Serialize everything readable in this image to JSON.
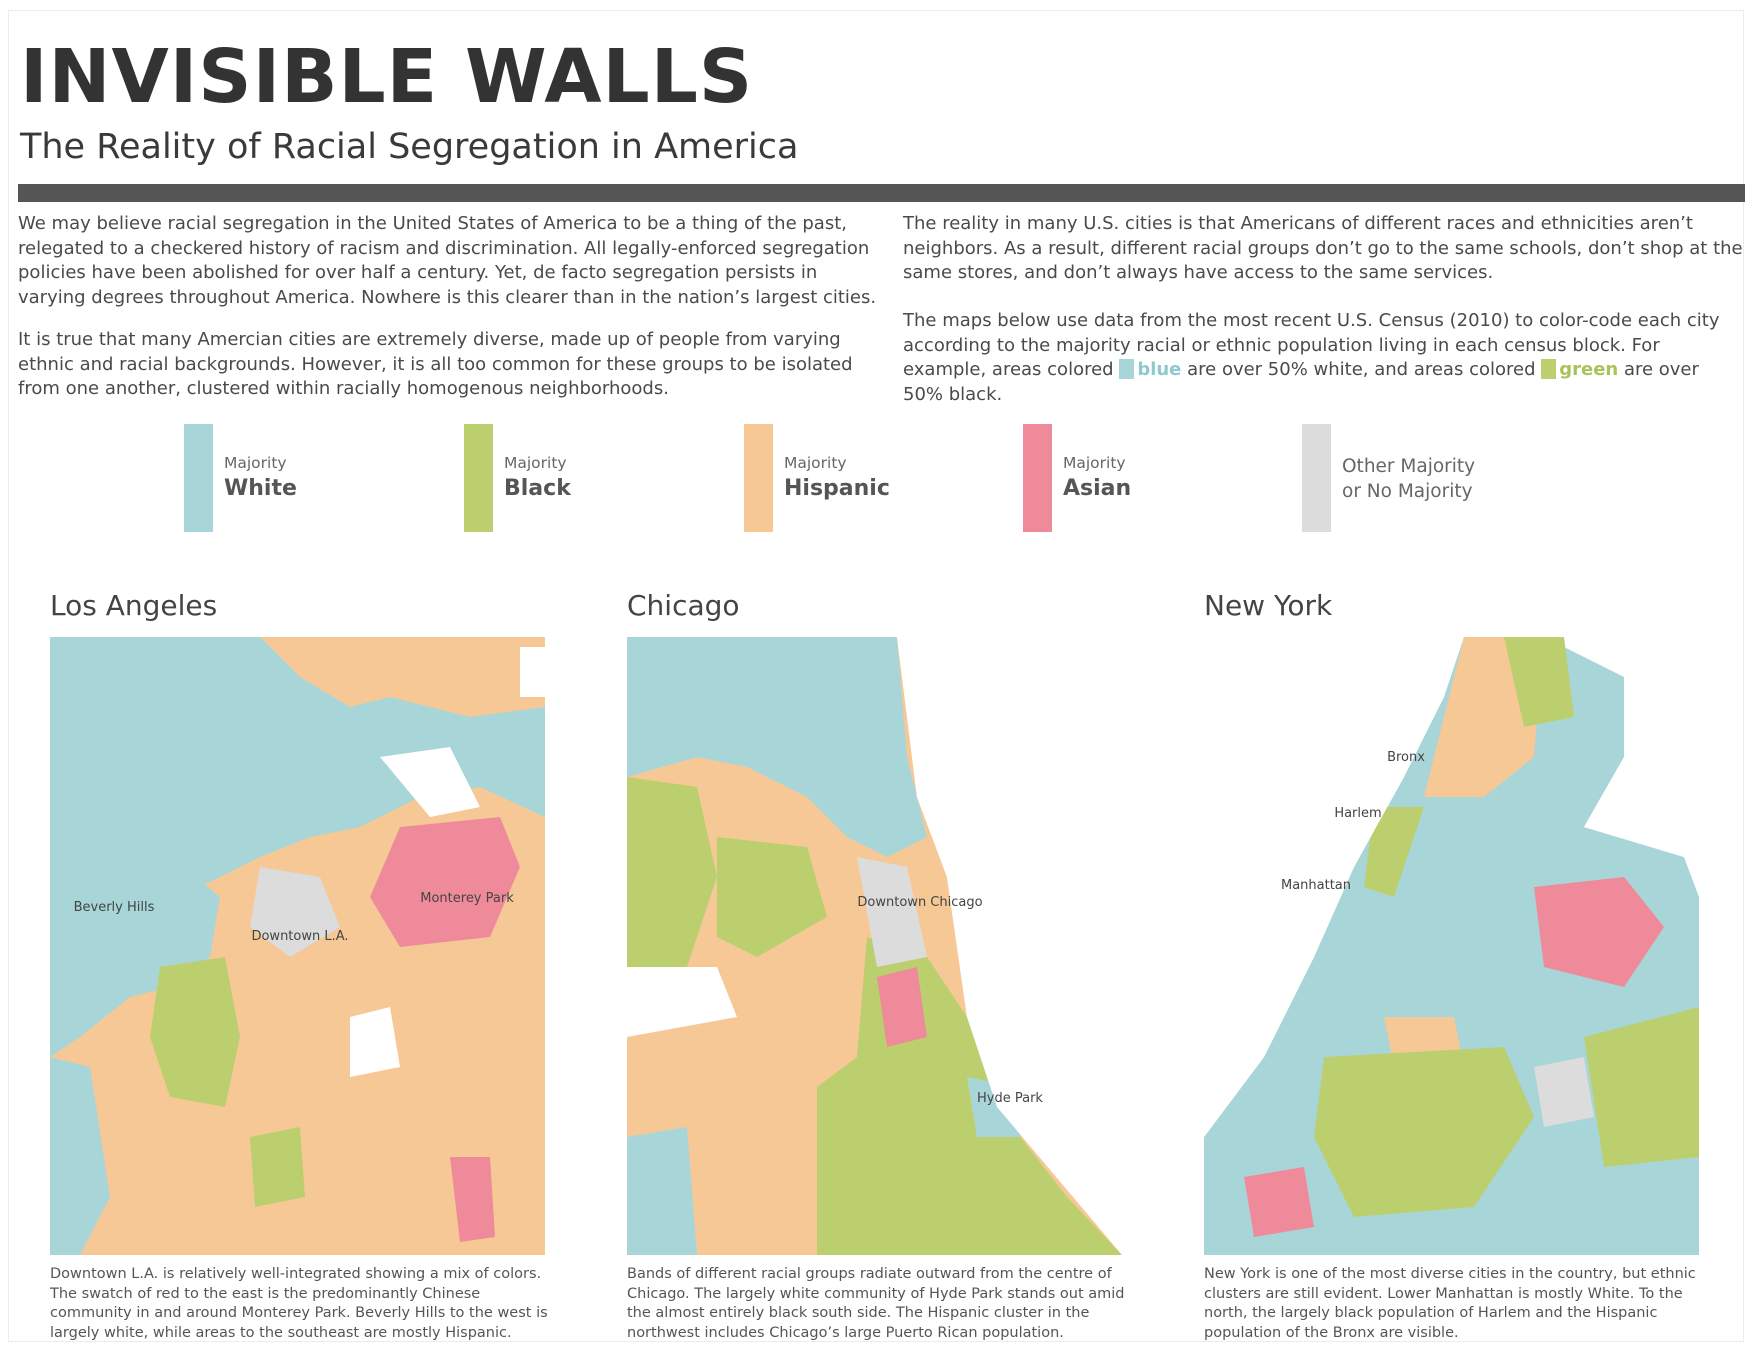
{
  "header": {
    "title": "INVISIBLE WALLS",
    "subtitle": "The Reality of Racial Segregation in America"
  },
  "intro": {
    "p1": "We may believe racial segregation in the United States of America to be a thing of the past, relegated to a checkered history of racism and discrimination. All legally-enforced segregation policies have been abolished for over half a century. Yet, de facto segregation persists in varying degrees throughout America. Nowhere is this clearer than in the nation’s largest cities.",
    "p2": "It is true that many Amercian cities are extremely diverse, made up of people from varying ethnic and racial backgrounds. However, it is all too common for these groups to be isolated from one another, clustered within racially homogenous neighborhoods.",
    "p3": "The reality in many U.S. cities is that Americans of different races and ethnicities aren’t neighbors. As a result, different racial groups don’t go to the same schools, don’t shop at the same stores, and don’t always have access to the same services.",
    "p4_a": "The maps below use data from the most recent U.S. Census (2010) to color-code each city according to the majority racial or ethnic population living in each census block. For example, areas colored ",
    "p4_blue": "blue",
    "p4_b": " are over 50% white, and areas colored ",
    "p4_green": "green",
    "p4_c": " are over 50% black."
  },
  "colors": {
    "white": "#a8d5d8",
    "black": "#bccf6f",
    "hispanic": "#f6c896",
    "asian": "#ef8a9a",
    "other": "#dcdcdc",
    "blue_text": "#8ec9cf",
    "green_text": "#a9c25a"
  },
  "legend": [
    {
      "small": "Majority",
      "big": "White",
      "color": "#a8d5d8"
    },
    {
      "small": "Majority",
      "big": "Black",
      "color": "#bccf6f"
    },
    {
      "small": "Majority",
      "big": "Hispanic",
      "color": "#f6c896"
    },
    {
      "small": "Majority",
      "big": "Asian",
      "color": "#ef8a9a"
    },
    {
      "line1": "Other Majority",
      "line2": "or No Majority",
      "color": "#dcdcdc"
    }
  ],
  "cities": [
    {
      "name": "Los Angeles",
      "labels": {
        "beverly": "Beverly Hills",
        "downtown": "Downtown L.A.",
        "monterey": "Monterey Park"
      },
      "caption": "Downtown L.A. is relatively well-integrated showing a mix of colors. The swatch of red to the east is the predominantly Chinese community in and around Monterey Park. Beverly Hills to the west is largely white, while areas to the southeast are mostly Hispanic."
    },
    {
      "name": "Chicago",
      "labels": {
        "downtown": "Downtown Chicago",
        "hyde": "Hyde Park"
      },
      "caption": "Bands of different racial groups radiate outward from the centre of Chicago. The largely white community of Hyde Park stands out amid the almost entirely black south side. The Hispanic cluster in the northwest includes Chicago’s large Puerto Rican population."
    },
    {
      "name": "New York",
      "labels": {
        "bronx": "Bronx",
        "harlem": "Harlem",
        "manhattan": "Manhattan"
      },
      "caption": "New York is one of the most diverse cities in the country, but ethnic clusters are still evident. Lower Manhattan is mostly White. To the north, the largely black population of Harlem and the Hispanic population of the Bronx are visible."
    }
  ]
}
